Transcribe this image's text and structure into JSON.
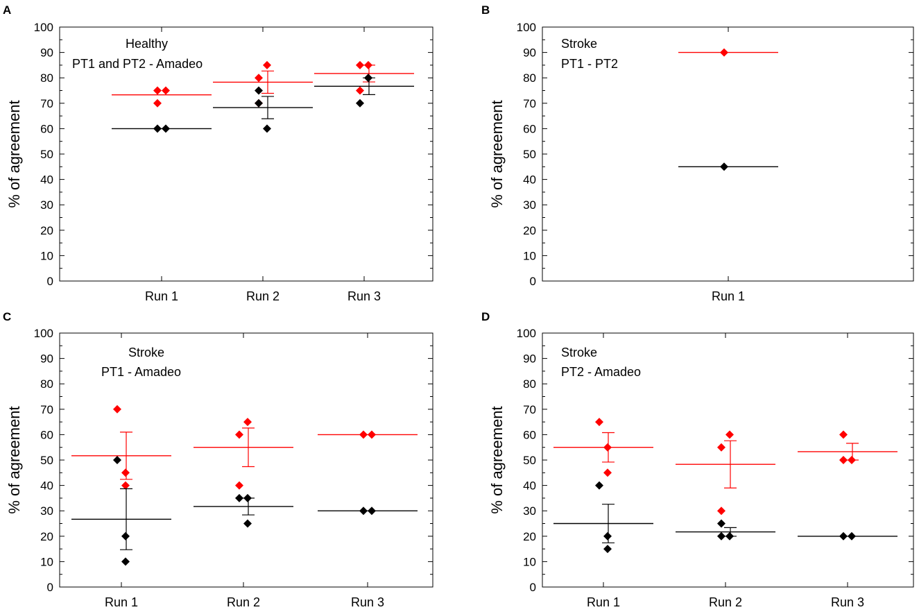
{
  "colors": {
    "red": "#ff0000",
    "black": "#000000"
  },
  "chart_data": [
    {
      "panel": "A",
      "type": "scatter",
      "ylabel": "% of agreement",
      "ylim": [
        0,
        100
      ],
      "yticks": [
        "0",
        "10",
        "20",
        "30",
        "40",
        "50",
        "60",
        "70",
        "80",
        "90",
        "100"
      ],
      "categories": [
        "Run 1",
        "Run 2",
        "Run 3"
      ],
      "annotation": [
        "Healthy",
        "PT1 and PT2 - Amadeo"
      ],
      "series": [
        {
          "name": "red",
          "color": "red",
          "points": [
            [
              [
                70,
                75
              ],
              [
                75
              ]
            ],
            [
              [
                80,
                70
              ],
              [
                85
              ]
            ],
            [
              [
                75,
                85
              ],
              [
                85
              ]
            ]
          ],
          "means": [
            73.3,
            78.3,
            81.7
          ],
          "err": [
            null,
            4.4,
            3.3
          ]
        },
        {
          "name": "black",
          "color": "black",
          "points": [
            [
              [
                60
              ],
              [
                60
              ]
            ],
            [
              [
                70,
                75
              ],
              [
                60
              ]
            ],
            [
              [
                70
              ],
              [
                80,
                80
              ]
            ]
          ],
          "means": [
            60,
            68.3,
            76.7
          ],
          "err": [
            null,
            4.4,
            3.3
          ]
        }
      ]
    },
    {
      "panel": "B",
      "type": "scatter",
      "ylabel": "% of agreement",
      "ylim": [
        0,
        100
      ],
      "yticks": [
        "0",
        "10",
        "20",
        "30",
        "40",
        "50",
        "60",
        "70",
        "80",
        "90",
        "100"
      ],
      "categories": [
        "Run 1"
      ],
      "annotation": [
        "Stroke",
        "PT1 - PT2"
      ],
      "series": [
        {
          "name": "red",
          "color": "red",
          "points": [
            [
              [
                90
              ],
              []
            ]
          ],
          "means": [
            90
          ],
          "err": [
            null
          ]
        },
        {
          "name": "black",
          "color": "black",
          "points": [
            [
              [
                45
              ],
              []
            ]
          ],
          "means": [
            45
          ],
          "err": [
            null
          ]
        }
      ]
    },
    {
      "panel": "C",
      "type": "scatter",
      "ylabel": "% of agreement",
      "ylim": [
        0,
        100
      ],
      "yticks": [
        "0",
        "10",
        "20",
        "30",
        "40",
        "50",
        "60",
        "70",
        "80",
        "90",
        "100"
      ],
      "categories": [
        "Run 1",
        "Run 2",
        "Run 3"
      ],
      "annotation": [
        "Stroke",
        "PT1 - Amadeo"
      ],
      "series": [
        {
          "name": "red",
          "color": "red",
          "points": [
            [
              [
                70
              ],
              [
                45,
                40
              ]
            ],
            [
              [
                60,
                40
              ],
              [
                65
              ]
            ],
            [
              [
                60
              ],
              [
                60
              ]
            ]
          ],
          "means": [
            51.7,
            55,
            60
          ],
          "err": [
            9.3,
            7.6,
            null
          ]
        },
        {
          "name": "black",
          "color": "black",
          "points": [
            [
              [
                50
              ],
              [
                20,
                10
              ]
            ],
            [
              [
                35
              ],
              [
                35,
                25
              ]
            ],
            [
              [
                30
              ],
              [
                30
              ]
            ]
          ],
          "means": [
            26.7,
            31.7,
            30
          ],
          "err": [
            12,
            3.3,
            null
          ]
        }
      ]
    },
    {
      "panel": "D",
      "type": "scatter",
      "ylabel": "% of agreement",
      "ylim": [
        0,
        100
      ],
      "yticks": [
        "0",
        "10",
        "20",
        "30",
        "40",
        "50",
        "60",
        "70",
        "80",
        "90",
        "100"
      ],
      "categories": [
        "Run 1",
        "Run 2",
        "Run 3"
      ],
      "annotation": [
        "Stroke",
        "PT2 - Amadeo"
      ],
      "series": [
        {
          "name": "red",
          "color": "red",
          "points": [
            [
              [
                65
              ],
              [
                55,
                45
              ]
            ],
            [
              [
                55,
                30
              ],
              [
                60
              ]
            ],
            [
              [
                60,
                50
              ],
              [
                50
              ]
            ]
          ],
          "means": [
            55,
            48.3,
            53.3
          ],
          "err": [
            5.8,
            9.3,
            3.3
          ]
        },
        {
          "name": "black",
          "color": "black",
          "points": [
            [
              [
                40
              ],
              [
                20,
                15
              ]
            ],
            [
              [
                25,
                20
              ],
              [
                20
              ]
            ],
            [
              [
                20
              ],
              [
                20
              ]
            ]
          ],
          "means": [
            25,
            21.7,
            20
          ],
          "err": [
            7.6,
            1.7,
            null
          ]
        }
      ]
    }
  ]
}
